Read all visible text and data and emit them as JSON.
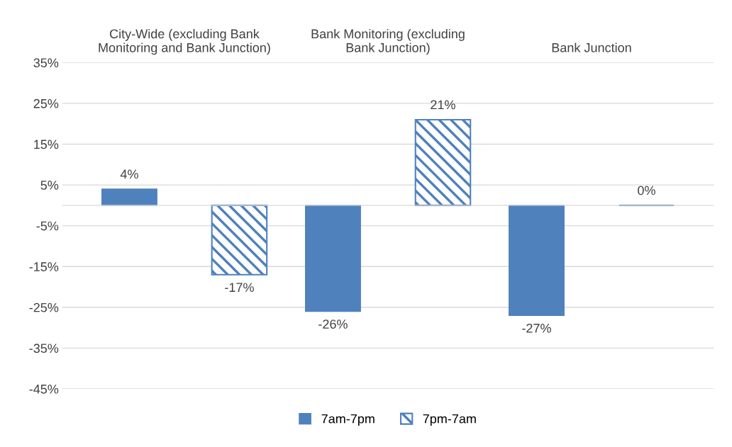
{
  "chart_data": {
    "type": "bar",
    "categories": [
      "City-Wide (excluding Bank Monitoring and Bank Junction)",
      "Bank Monitoring (excluding Bank Junction)",
      "Bank Junction"
    ],
    "series": [
      {
        "name": "7am-7pm",
        "color": "#4f81bd",
        "values": [
          4,
          -26,
          -27
        ],
        "value_labels": [
          "4%",
          "-26%",
          "-27%"
        ]
      },
      {
        "name": "7pm-7am",
        "color": "#4f81bd",
        "values": [
          -17,
          21,
          0
        ],
        "value_labels": [
          "-17%",
          "21%",
          "0%"
        ]
      }
    ],
    "ylim": [
      -45,
      35
    ],
    "yticks": [
      {
        "value": -45,
        "label": "-45%"
      },
      {
        "value": -35,
        "label": "-35%"
      },
      {
        "value": -25,
        "label": "-25%"
      },
      {
        "value": -15,
        "label": "-15%"
      },
      {
        "value": -5,
        "label": "-5%"
      },
      {
        "value": 5,
        "label": "5%"
      },
      {
        "value": 15,
        "label": "15%"
      },
      {
        "value": 25,
        "label": "25%"
      },
      {
        "value": 35,
        "label": "35%"
      }
    ],
    "grid": "y",
    "legend": "bottom"
  }
}
